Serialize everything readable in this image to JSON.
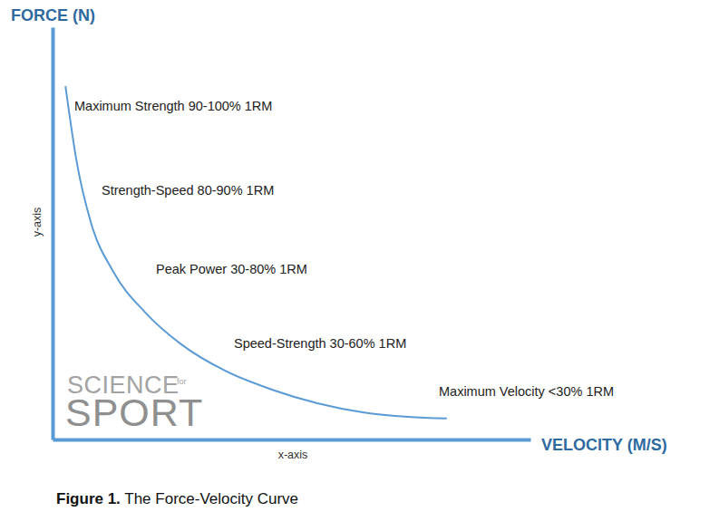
{
  "chart_data": {
    "type": "line",
    "title": "Figure 1. The Force-Velocity Curve",
    "xlabel": "VELOCITY (M/S)",
    "ylabel": "FORCE (N)",
    "annotations": [
      "Maximum Strength 90-100% 1RM",
      "Strength-Speed 80-90% 1RM",
      "Peak Power 30-80% 1RM",
      "Speed-Strength 30-60% 1RM",
      "Maximum Velocity <30% 1RM",
      "y-axis",
      "x-axis",
      "SCIENCE",
      "for",
      "SPORT"
    ],
    "x": [
      2.7,
      5.1,
      8.0,
      12.7,
      19.4,
      26.9,
      36.4,
      45.9,
      55.4,
      64.9,
      74.4,
      82.5
    ],
    "values": [
      85.7,
      67.0,
      52.7,
      40.7,
      30.8,
      23.1,
      16.5,
      12.1,
      8.8,
      6.6,
      5.5,
      5.1
    ],
    "color": "#5b9bd5",
    "xlim": [
      0,
      100
    ],
    "ylim": [
      0,
      100
    ],
    "xticks": [],
    "yticks": [],
    "tick_labels": false,
    "grid": false
  }
}
